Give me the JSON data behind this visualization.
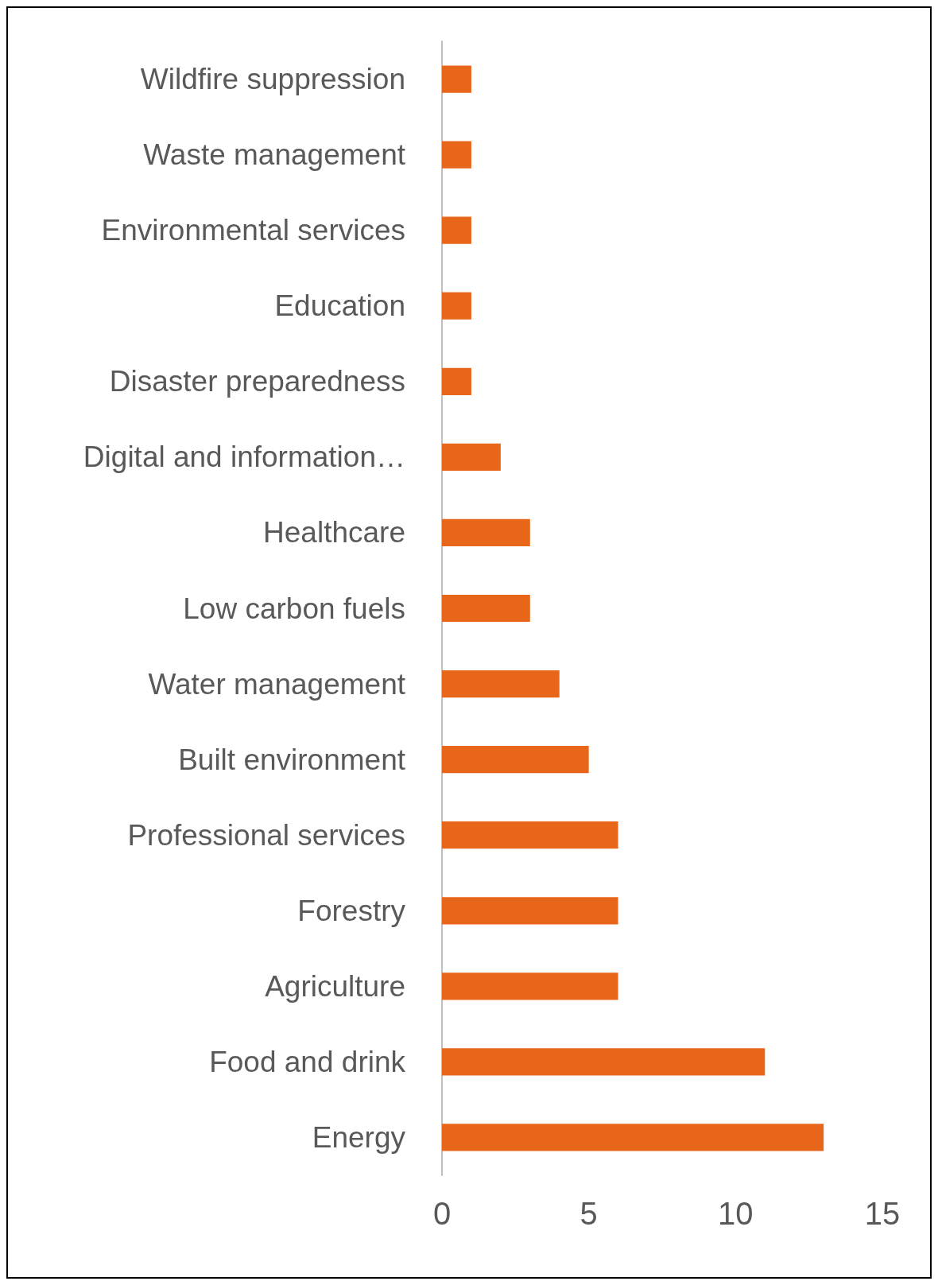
{
  "chart_data": {
    "type": "bar",
    "orientation": "horizontal",
    "categories": [
      "Wildfire suppression",
      "Waste management",
      "Environmental services",
      "Education",
      "Disaster preparedness",
      "Digital and information…",
      "Healthcare",
      "Low carbon fuels",
      "Water management",
      "Built environment",
      "Professional services",
      "Forestry",
      "Agriculture",
      "Food and drink",
      "Energy"
    ],
    "values": [
      1,
      1,
      1,
      1,
      1,
      2,
      3,
      3,
      4,
      5,
      6,
      6,
      6,
      11,
      13
    ],
    "color": "#e8661a",
    "xlim": [
      0,
      15
    ],
    "xticks": [
      0,
      5,
      10,
      15
    ],
    "grid": false
  }
}
